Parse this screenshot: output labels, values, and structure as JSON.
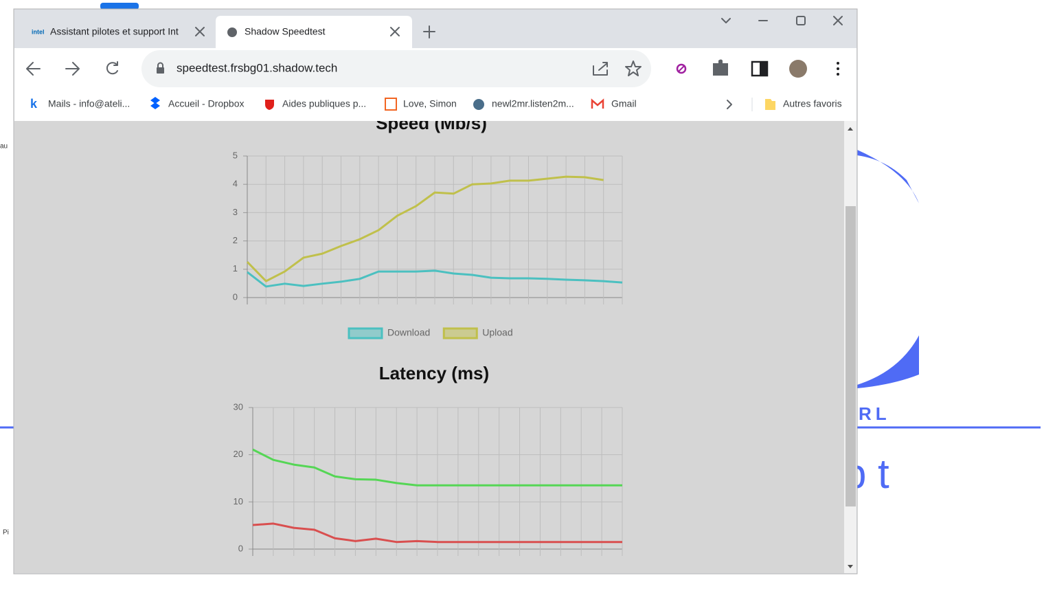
{
  "desktop": {
    "texts": [
      "au",
      "Pi",
      "RL",
      "p t"
    ]
  },
  "browser": {
    "tabs": [
      {
        "icon_text": "intel",
        "title": "Assistant pilotes et support Int"
      },
      {
        "title": "Shadow Speedtest"
      }
    ],
    "url": "speedtest.frsbg01.shadow.tech",
    "bookmarks": [
      "Mails - info@ateli...",
      "Accueil - Dropbox",
      "Aides publiques p...",
      "Love, Simon",
      "newl2mr.listen2m...",
      "Gmail"
    ],
    "other_bookmarks": "Autres favoris"
  },
  "chart_data": [
    {
      "type": "line",
      "title": "Speed (Mb/s)",
      "categories": [
        null,
        null,
        null,
        null,
        null,
        null,
        null,
        null,
        null,
        null,
        null,
        null,
        null,
        null,
        null,
        null,
        null,
        null,
        null,
        null,
        null
      ],
      "series": [
        {
          "name": "Download",
          "color": "#4bc0c0",
          "values": [
            0.9,
            0.39,
            0.49,
            0.41,
            0.49,
            0.56,
            0.66,
            0.92,
            0.92,
            0.92,
            0.95,
            0.85,
            0.8,
            0.7,
            0.68,
            0.68,
            0.66,
            0.63,
            0.61,
            0.58,
            0.53
          ]
        },
        {
          "name": "Upload",
          "color": "#c0c04b",
          "values": [
            1.26,
            0.58,
            0.92,
            1.41,
            1.55,
            1.82,
            2.06,
            2.38,
            2.89,
            3.23,
            3.71,
            3.67,
            4.0,
            4.03,
            4.13,
            4.13,
            4.2,
            4.27,
            4.25,
            4.15,
            null
          ]
        }
      ],
      "ylim": [
        0,
        5
      ],
      "yticks": [
        0,
        1,
        2,
        3,
        4,
        5
      ],
      "grid": true,
      "legend": "bottom"
    },
    {
      "type": "line",
      "title": "Latency (ms)",
      "categories": [
        null,
        null,
        null,
        null,
        null,
        null,
        null,
        null,
        null,
        null,
        null,
        null,
        null,
        null,
        null,
        null,
        null,
        null,
        null
      ],
      "series": [
        {
          "color": "#55d655",
          "values": [
            21.1,
            18.9,
            17.9,
            17.3,
            15.4,
            14.8,
            14.7,
            14.0,
            13.5,
            13.5,
            13.5,
            13.5,
            13.5,
            13.5,
            13.5,
            13.5,
            13.5,
            13.5,
            13.5
          ]
        },
        {
          "color": "#d94f4f",
          "values": [
            5.1,
            5.4,
            4.5,
            4.1,
            2.3,
            1.7,
            2.2,
            1.5,
            1.7,
            1.5,
            1.5,
            1.5,
            1.5,
            1.5,
            1.5,
            1.5,
            1.5,
            1.5,
            1.5
          ]
        }
      ],
      "ylim": [
        0,
        30
      ],
      "yticks": [
        0,
        10,
        20,
        30
      ],
      "grid": true
    }
  ]
}
